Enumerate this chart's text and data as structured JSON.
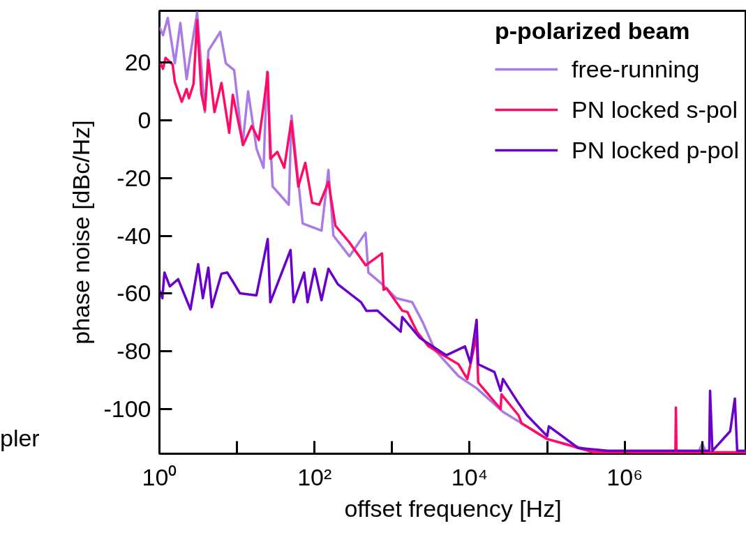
{
  "chart_data": {
    "type": "line",
    "xlabel": "offset frequency [Hz]",
    "ylabel": "phase noise [dBc/Hz]",
    "legend_title": "p-polarized beam",
    "log": "x",
    "grid": false,
    "legend": "top right",
    "marker": "none",
    "line_style": "solid",
    "xlim": [
      1,
      37000000
    ],
    "ylim": [
      -115.5,
      38
    ],
    "xticks": [
      {
        "value": 1,
        "label": "10⁰"
      },
      {
        "value": 100,
        "label": "10²"
      },
      {
        "value": 10000,
        "label": "10⁴"
      },
      {
        "value": 1000000,
        "label": "10⁶"
      }
    ],
    "yticks": [
      -100,
      -80,
      -60,
      -40,
      -20,
      0,
      20
    ],
    "annotations": [
      "pler"
    ],
    "series": [
      {
        "name": "free-running",
        "color": "#a97be6",
        "x": [
          1,
          1.11,
          1.28,
          1.58,
          1.86,
          2.24,
          2.54,
          3.06,
          3.85,
          4.28,
          6.08,
          7.18,
          9.2,
          11.8,
          13.9,
          17.9,
          22,
          24.4,
          28.8,
          46.5,
          50.5,
          70.3,
          123,
          151,
          175,
          282,
          455,
          494,
          748,
          1130,
          1820,
          2490,
          3550,
          7180,
          12300,
          26900,
          100000,
          389000,
          3160000,
          8900000,
          10000000,
          11200000,
          37000000
        ],
        "values": [
          32.4,
          29.5,
          35.5,
          19.8,
          33.8,
          14.3,
          23.9,
          37.4,
          2.9,
          24.2,
          30.7,
          19.8,
          17.4,
          -8.5,
          10.1,
          -9.9,
          -16.4,
          16.9,
          -22.9,
          -29.2,
          1.7,
          -35.7,
          -38.2,
          -17.1,
          -39.9,
          -47.1,
          -38.9,
          -52.7,
          -56.8,
          -61.6,
          -63,
          -70,
          -79.5,
          -88.6,
          -92.8,
          -101,
          -110.4,
          -114.5,
          -115,
          -115,
          -112,
          -115,
          -115
        ]
      },
      {
        "name": "PN locked s-pol",
        "color": "#ff0a64",
        "x": [
          1,
          1.11,
          1.2,
          1.48,
          1.58,
          1.94,
          2.24,
          2.4,
          2.75,
          3.06,
          3.47,
          3.85,
          4.27,
          5.13,
          6.31,
          7.94,
          8.83,
          12,
          15.5,
          19.1,
          21.9,
          24.9,
          26.9,
          33.1,
          40.7,
          50.1,
          61.7,
          75.9,
          93.3,
          115,
          151,
          186,
          282,
          457,
          741,
          776,
          851,
          1350,
          1580,
          2090,
          2950,
          7180,
          9330,
          12300,
          12900,
          25100,
          25700,
          42700,
          46800,
          100000,
          389000,
          4500000,
          4570000,
          4650000,
          37000000
        ],
        "values": [
          20.5,
          17.9,
          21.7,
          19.3,
          13.3,
          6.5,
          10.9,
          7.7,
          12.6,
          34.8,
          9.4,
          3.6,
          21,
          2.9,
          13,
          -4.3,
          8.9,
          -8.5,
          -1.9,
          -6.8,
          4.6,
          16.7,
          -13.3,
          -10.9,
          -16.4,
          -0.2,
          -22.9,
          -14.7,
          -28.5,
          -29.2,
          -21.3,
          -36.5,
          -42.3,
          -50.2,
          -46.1,
          -58.7,
          -58.2,
          -65.9,
          -66.4,
          -73.2,
          -78.3,
          -84.5,
          -89.6,
          -74.6,
          -90.8,
          -100,
          -94.9,
          -102.2,
          -105,
          -110.4,
          -115,
          -115,
          -99.5,
          -115,
          -115
        ]
      },
      {
        "name": "PN locked p-pol",
        "color": "#6a00cc",
        "x": [
          1,
          1.09,
          1.16,
          1.36,
          1.74,
          2.51,
          3.16,
          3.63,
          4.27,
          4.74,
          6.31,
          7.48,
          8.83,
          10.9,
          17.8,
          24.9,
          26.9,
          49,
          53.7,
          73.3,
          81.3,
          100,
          123,
          151,
          200,
          398,
          468,
          646,
          1290,
          1350,
          2290,
          5010,
          8710,
          10200,
          12300,
          12900,
          20900,
          25100,
          26900,
          42700,
          55000,
          100000,
          105000,
          251000,
          603000,
          12300000,
          12600000,
          13500000,
          22900000,
          26300000,
          28200000,
          37000000
        ],
        "values": [
          -58.7,
          -61.6,
          -52.7,
          -57.5,
          -55,
          -65.5,
          -49.8,
          -61.6,
          -51,
          -64.7,
          -53.1,
          -52.7,
          -55.8,
          -59.9,
          -60.6,
          -41.1,
          -63,
          -44.9,
          -63,
          -52.7,
          -63,
          -51.4,
          -62.3,
          -51.4,
          -56.8,
          -63,
          -66,
          -65.9,
          -73.2,
          -68.1,
          -75.4,
          -81.4,
          -78.3,
          -84,
          -69.1,
          -84.5,
          -87.2,
          -93.7,
          -89.6,
          -98,
          -102.2,
          -109.4,
          -106,
          -113.5,
          -114.5,
          -114.5,
          -93.7,
          -114.5,
          -107.7,
          -96.4,
          -114.5,
          -114.5
        ]
      }
    ]
  }
}
